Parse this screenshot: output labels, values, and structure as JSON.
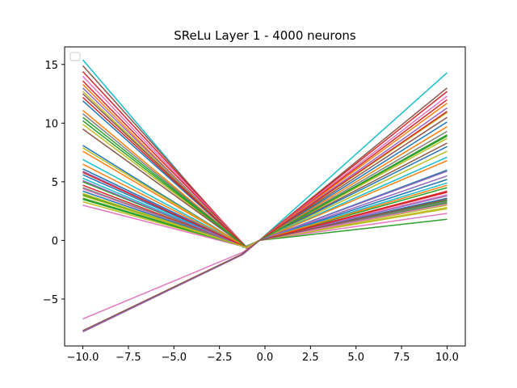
{
  "chart_data": {
    "type": "line",
    "title": "SReLu Layer 1 - 4000 neurons",
    "xlabel": "",
    "ylabel": "",
    "xlim": [
      -11,
      11
    ],
    "ylim": [
      -9,
      16.5
    ],
    "xticks": [
      -10.0,
      -7.5,
      -5.0,
      -2.5,
      0.0,
      2.5,
      5.0,
      7.5,
      10.0
    ],
    "xtick_labels": [
      "−10.0",
      "−7.5",
      "−5.0",
      "−2.5",
      "0.0",
      "2.5",
      "5.0",
      "7.5",
      "10.0"
    ],
    "yticks": [
      -5,
      0,
      5,
      10,
      15
    ],
    "ytick_labels": [
      "−5",
      "0",
      "5",
      "10",
      "15"
    ],
    "grid": false,
    "legend": "top-left (empty)",
    "palette": [
      "#1f77b4",
      "#ff7f0e",
      "#2ca02c",
      "#d62728",
      "#9467bd",
      "#8c564b",
      "#e377c2",
      "#7f7f7f",
      "#bcbd22",
      "#17becf"
    ],
    "series": [
      {
        "x": [
          -10,
          -1.2,
          -0.3,
          10
        ],
        "y": [
          15.4,
          -0.6,
          0,
          14.3
        ],
        "color": "#17becf"
      },
      {
        "x": [
          -10,
          -1.0,
          -0.3,
          10
        ],
        "y": [
          14.9,
          -0.7,
          0,
          13.0
        ],
        "color": "#8c564b"
      },
      {
        "x": [
          -10,
          -1.0,
          -0.3,
          10
        ],
        "y": [
          14.4,
          -0.6,
          0,
          12.7
        ],
        "color": "#d62728"
      },
      {
        "x": [
          -10,
          -1.0,
          -0.3,
          10
        ],
        "y": [
          14.0,
          -0.6,
          0,
          12.3
        ],
        "color": "#e377c2"
      },
      {
        "x": [
          -10,
          -1.0,
          -0.3,
          10
        ],
        "y": [
          13.6,
          -0.6,
          0,
          12.0
        ],
        "color": "#d62728"
      },
      {
        "x": [
          -10,
          -1.1,
          -0.3,
          10
        ],
        "y": [
          13.3,
          -0.6,
          0,
          11.7
        ],
        "color": "#ff7f0e"
      },
      {
        "x": [
          -10,
          -1.0,
          -0.3,
          10
        ],
        "y": [
          13.0,
          -0.6,
          0,
          11.3
        ],
        "color": "#9467bd"
      },
      {
        "x": [
          -10,
          -1.0,
          -0.3,
          10
        ],
        "y": [
          12.7,
          -0.6,
          0,
          10.9
        ],
        "color": "#bcbd22"
      },
      {
        "x": [
          -10,
          -1.0,
          -0.3,
          10
        ],
        "y": [
          12.5,
          -0.6,
          0,
          10.5
        ],
        "color": "#8c564b"
      },
      {
        "x": [
          -10,
          -1.0,
          -0.3,
          10
        ],
        "y": [
          11.9,
          -0.6,
          0,
          10.1
        ],
        "color": "#1f77b4"
      },
      {
        "x": [
          -10,
          -1.0,
          -0.3,
          10
        ],
        "y": [
          11.1,
          -0.6,
          0,
          9.7
        ],
        "color": "#ff7f0e"
      },
      {
        "x": [
          -10,
          -1.0,
          -0.3,
          10
        ],
        "y": [
          10.8,
          -0.6,
          0,
          9.3
        ],
        "color": "#7f7f7f"
      },
      {
        "x": [
          -10,
          -1.0,
          -0.3,
          10
        ],
        "y": [
          10.5,
          -0.6,
          0,
          9.0
        ],
        "color": "#2ca02c"
      },
      {
        "x": [
          -10,
          -1.0,
          -0.3,
          10
        ],
        "y": [
          9.9,
          -0.6,
          0,
          8.7
        ],
        "color": "#bcbd22"
      },
      {
        "x": [
          -10,
          -1.0,
          -0.3,
          10
        ],
        "y": [
          9.5,
          -0.6,
          0,
          8.3
        ],
        "color": "#8c564b"
      },
      {
        "x": [
          -10,
          -1.0,
          -0.3,
          10
        ],
        "y": [
          8.1,
          -0.6,
          0,
          8.0
        ],
        "color": "#1f77b4"
      },
      {
        "x": [
          -10,
          -1.0,
          -0.3,
          10
        ],
        "y": [
          7.9,
          -0.6,
          0,
          7.6
        ],
        "color": "#bcbd22"
      },
      {
        "x": [
          -10,
          -1.0,
          -0.3,
          10
        ],
        "y": [
          6.9,
          -0.6,
          0,
          7.1
        ],
        "color": "#17becf"
      },
      {
        "x": [
          -10,
          -1.0,
          -0.3,
          10
        ],
        "y": [
          6.5,
          -0.6,
          0,
          6.8
        ],
        "color": "#ff7f0e"
      },
      {
        "x": [
          -10,
          -1.0,
          -0.3,
          10
        ],
        "y": [
          6.1,
          -0.6,
          0,
          6.0
        ],
        "color": "#1f77b4"
      },
      {
        "x": [
          -10,
          -1.0,
          -0.3,
          10
        ],
        "y": [
          5.9,
          -0.6,
          0,
          5.5
        ],
        "color": "#9467bd"
      },
      {
        "x": [
          -10,
          -1.0,
          -0.3,
          10
        ],
        "y": [
          5.6,
          -0.6,
          0,
          5.2
        ],
        "color": "#1f77b4"
      },
      {
        "x": [
          -10,
          -1.0,
          -0.3,
          10
        ],
        "y": [
          5.3,
          -0.6,
          0,
          4.9
        ],
        "color": "#17becf"
      },
      {
        "x": [
          -10,
          -1.0,
          -0.3,
          10
        ],
        "y": [
          5.0,
          -0.6,
          0,
          4.5
        ],
        "color": "#2ca02c"
      },
      {
        "x": [
          -10,
          -1.0,
          -0.3,
          10
        ],
        "y": [
          4.7,
          -0.6,
          0,
          4.2
        ],
        "color": "#d62728"
      },
      {
        "x": [
          -10,
          -1.0,
          -0.3,
          10
        ],
        "y": [
          4.4,
          -0.6,
          0,
          3.9
        ],
        "color": "#e377c2"
      },
      {
        "x": [
          -10,
          -1.0,
          -0.3,
          10
        ],
        "y": [
          4.2,
          -0.6,
          0,
          3.6
        ],
        "color": "#1f77b4"
      },
      {
        "x": [
          -10,
          -1.0,
          -0.3,
          10
        ],
        "y": [
          3.9,
          -0.6,
          0,
          3.4
        ],
        "color": "#2ca02c"
      },
      {
        "x": [
          -10,
          -1.0,
          -0.3,
          10
        ],
        "y": [
          3.6,
          -0.6,
          0,
          3.2
        ],
        "color": "#2ca02c"
      },
      {
        "x": [
          -10,
          -1.0,
          -0.3,
          10
        ],
        "y": [
          3.3,
          -0.6,
          0,
          2.8
        ],
        "color": "#bcbd22"
      },
      {
        "x": [
          -10,
          -1.0,
          -0.3,
          10
        ],
        "y": [
          3.0,
          -0.6,
          0,
          2.3
        ],
        "color": "#e377c2"
      },
      {
        "x": [
          -10,
          -1.0,
          -0.3,
          10
        ],
        "y": [
          3.5,
          -0.6,
          0,
          1.8
        ],
        "color": "#2ca02c"
      },
      {
        "x": [
          -10,
          -1.0,
          -0.3,
          10
        ],
        "y": [
          4.0,
          -0.6,
          0,
          2.7
        ],
        "color": "#bcbd22"
      },
      {
        "x": [
          -10,
          -1.0,
          -0.3,
          10
        ],
        "y": [
          4.5,
          -0.6,
          0,
          3.3
        ],
        "color": "#7f7f7f"
      },
      {
        "x": [
          -10,
          -1.0,
          -0.3,
          10
        ],
        "y": [
          5.1,
          -0.6,
          0,
          3.8
        ],
        "color": "#9467bd"
      },
      {
        "x": [
          -10,
          -1.0,
          -0.3,
          10
        ],
        "y": [
          7.6,
          -0.6,
          0,
          4.7
        ],
        "color": "#ff7f0e"
      },
      {
        "x": [
          -10,
          -1.0,
          -0.3,
          10
        ],
        "y": [
          12.2,
          -0.6,
          0,
          11.0
        ],
        "color": "#d62728"
      },
      {
        "x": [
          -10,
          -1.0,
          -0.3,
          10
        ],
        "y": [
          10.2,
          -0.6,
          0,
          8.9
        ],
        "color": "#2ca02c"
      },
      {
        "x": [
          -10,
          -1.0,
          -0.3,
          10
        ],
        "y": [
          5.8,
          -0.6,
          0,
          4.1
        ],
        "color": "#d62728"
      },
      {
        "x": [
          -10,
          -1.0,
          -0.3,
          10
        ],
        "y": [
          3.8,
          -0.6,
          0,
          3.0
        ],
        "color": "#bcbd22"
      },
      {
        "x": [
          -10,
          -1.2,
          -0.3,
          10
        ],
        "y": [
          -6.7,
          -1.0,
          0,
          3.1
        ],
        "color": "#e377c2"
      },
      {
        "x": [
          -10,
          -1.2,
          -0.3,
          10
        ],
        "y": [
          -7.8,
          -1.2,
          0,
          5.9
        ],
        "color": "#9467bd"
      },
      {
        "x": [
          -10,
          -1.3,
          -0.3,
          10
        ],
        "y": [
          -7.7,
          -1.2,
          0,
          3.5
        ],
        "color": "#8c564b"
      }
    ]
  }
}
